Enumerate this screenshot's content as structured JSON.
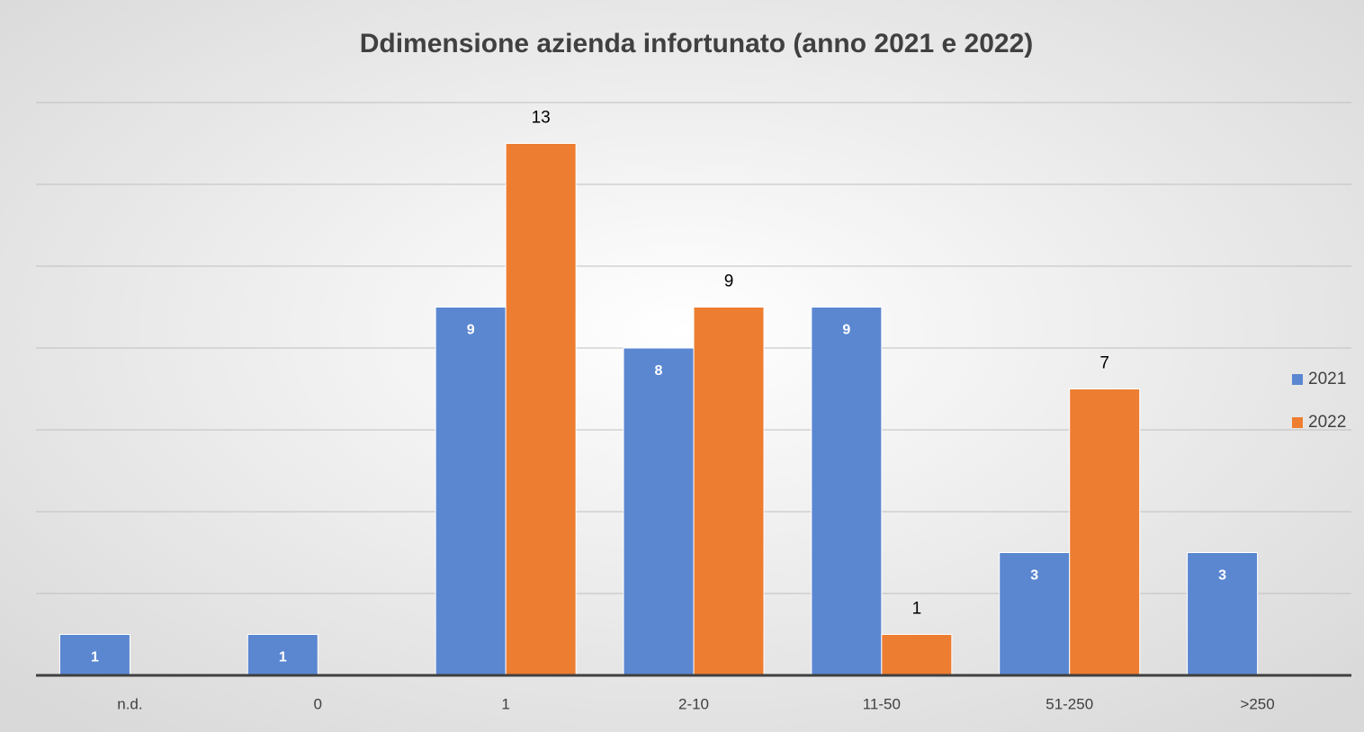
{
  "chart_data": {
    "type": "bar",
    "title": "Ddimensione azienda infortunato (anno 2021 e 2022)",
    "categories": [
      "n.d.",
      "0",
      "1",
      "2-10",
      "11-50",
      "51-250",
      ">250"
    ],
    "series": [
      {
        "name": "2021",
        "color": "#5b87d1",
        "values": [
          1,
          1,
          9,
          8,
          9,
          3,
          3
        ]
      },
      {
        "name": "2022",
        "color": "#ed7d31",
        "values": [
          null,
          null,
          13,
          9,
          1,
          7,
          null
        ]
      }
    ],
    "ylim": [
      0,
      14
    ],
    "yticks": [
      0,
      2,
      4,
      6,
      8,
      10,
      12,
      14
    ],
    "grid": true,
    "legend": "right"
  }
}
